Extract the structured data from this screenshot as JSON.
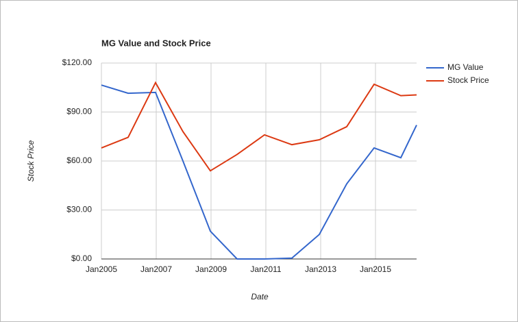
{
  "chart_data": {
    "type": "line",
    "title": "MG Value and Stock Price",
    "x_label": "Date",
    "y_label": "Stock Price",
    "x": [
      2005.0,
      2005.975,
      2006.975,
      2007.975,
      2008.975,
      2009.95,
      2010.95,
      2011.95,
      2012.95,
      2013.95,
      2014.95,
      2015.925,
      2016.5
    ],
    "xlim": [
      2005,
      2016.5
    ],
    "xticks": [
      {
        "value": 2005,
        "label": "Jan2005"
      },
      {
        "value": 2007,
        "label": "Jan2007"
      },
      {
        "value": 2009,
        "label": "Jan2009"
      },
      {
        "value": 2011,
        "label": "Jan2011"
      },
      {
        "value": 2013,
        "label": "Jan2013"
      },
      {
        "value": 2015,
        "label": "Jan2015"
      }
    ],
    "ylim": [
      0,
      120
    ],
    "yticks": [
      {
        "value": 0,
        "label": "$0.00"
      },
      {
        "value": 30,
        "label": "$30.00"
      },
      {
        "value": 60,
        "label": "$60.00"
      },
      {
        "value": 90,
        "label": "$90.00"
      },
      {
        "value": 120,
        "label": "$120.00"
      }
    ],
    "grid": true,
    "legend": "right",
    "series": [
      {
        "name": "MG Value",
        "color": "#3366cc",
        "values": [
          106.5,
          101.5,
          102,
          60,
          17,
          0,
          0,
          0.5,
          15,
          46,
          68,
          62,
          82
        ]
      },
      {
        "name": "Stock Price",
        "color": "#dc3912",
        "values": [
          68,
          74.5,
          108,
          78,
          54,
          64,
          76,
          70,
          73,
          81,
          107,
          100,
          100.5
        ]
      }
    ]
  }
}
